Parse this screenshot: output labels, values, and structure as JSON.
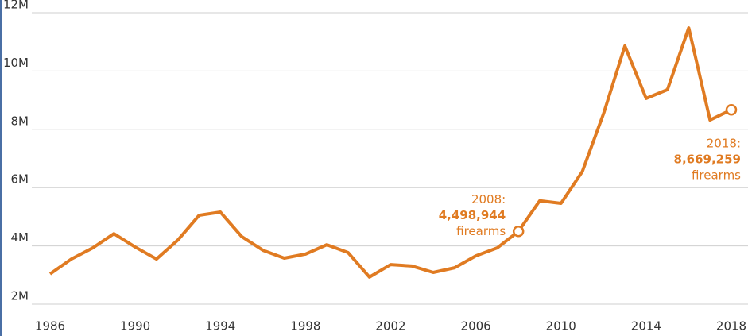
{
  "chart_data": {
    "type": "line",
    "x": [
      1986,
      1987,
      1988,
      1989,
      1990,
      1991,
      1992,
      1993,
      1994,
      1995,
      1996,
      1997,
      1998,
      1999,
      2000,
      2001,
      2002,
      2003,
      2004,
      2005,
      2006,
      2007,
      2008,
      2009,
      2010,
      2011,
      2012,
      2013,
      2014,
      2015,
      2016,
      2017,
      2018
    ],
    "series": [
      {
        "color": "#e07b22",
        "values": [
          3040000,
          3550000,
          3930000,
          4420000,
          3960000,
          3550000,
          4200000,
          5050000,
          5160000,
          4320000,
          3850000,
          3580000,
          3720000,
          4040000,
          3770000,
          2930000,
          3360000,
          3310000,
          3090000,
          3250000,
          3660000,
          3930000,
          4498944,
          5550000,
          5460000,
          6550000,
          8540000,
          10860000,
          9060000,
          9360000,
          11480000,
          8320000,
          8669259
        ],
        "value_labels": [
          null,
          null,
          null,
          null,
          null,
          null,
          null,
          null,
          null,
          null,
          null,
          null,
          null,
          null,
          null,
          null,
          null,
          null,
          null,
          null,
          null,
          null,
          "4,498,944",
          null,
          null,
          null,
          null,
          null,
          null,
          null,
          null,
          null,
          "8,669,259"
        ]
      }
    ],
    "annotations": [
      {
        "title": "2008:",
        "unit": "firearms"
      },
      {
        "title": "2018:",
        "unit": "firearms"
      }
    ],
    "xlim": [
      1986,
      2018
    ],
    "xticks": [
      1986,
      1990,
      1994,
      1998,
      2002,
      2006,
      2010,
      2014,
      2018
    ],
    "ylim": [
      2000000,
      12000000
    ],
    "yticks": [
      {
        "value": 2000000,
        "label": "2M"
      },
      {
        "value": 4000000,
        "label": "4M"
      },
      {
        "value": 6000000,
        "label": "6M"
      },
      {
        "value": 8000000,
        "label": "8M"
      },
      {
        "value": 10000000,
        "label": "10M"
      },
      {
        "value": 12000000,
        "label": "12M"
      }
    ],
    "grid": true
  }
}
